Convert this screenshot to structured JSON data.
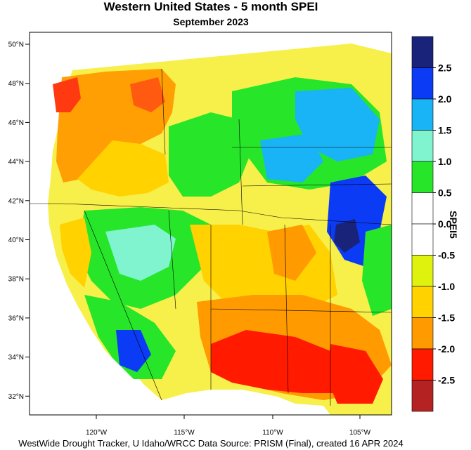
{
  "title": "Western United States - 5 month SPEI",
  "subtitle": "September 2023",
  "footer": "WestWide Drought Tracker, U Idaho/WRCC Data Source: PRISM (Final), created 16 APR 2024",
  "lat_labels": [
    "50°N",
    "48°N",
    "46°N",
    "44°N",
    "42°N",
    "40°N",
    "38°N",
    "36°N",
    "34°N",
    "32°N"
  ],
  "lon_labels": [
    "120°W",
    "115°W",
    "110°W",
    "105°W"
  ],
  "colorbar": {
    "title": "SPEI5",
    "labels": [
      "2.5",
      "2.0",
      "1.5",
      "1.0",
      "0.5",
      "0.0",
      "-0.5",
      "-1.0",
      "-1.5",
      "-2.0",
      "-2.5"
    ],
    "colors": [
      "#1a237a",
      "#0b3bf5",
      "#18b4f5",
      "#7ff4cf",
      "#27e629",
      "#ffffff",
      "#ffffff",
      "#dff20e",
      "#ffd200",
      "#ff9a00",
      "#ff1a00",
      "#b52222"
    ]
  }
}
